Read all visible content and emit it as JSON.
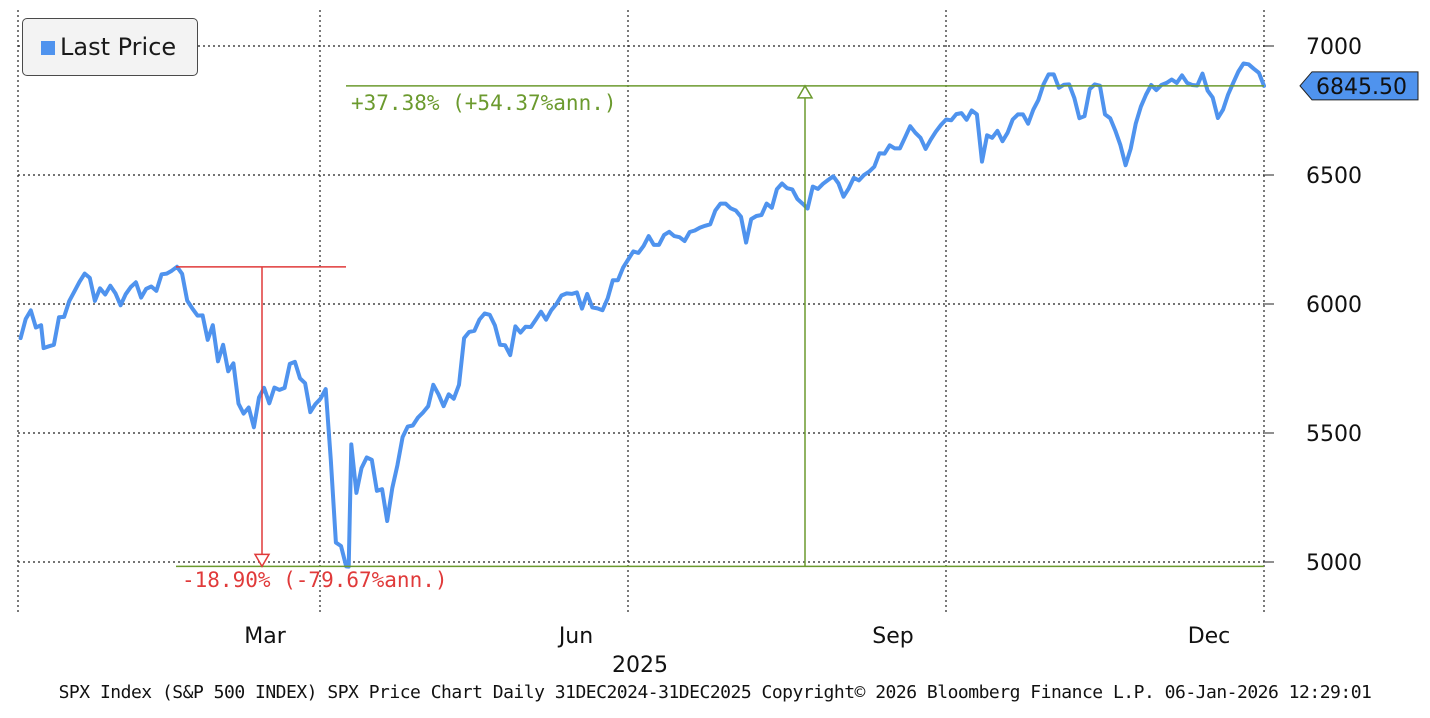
{
  "legend": {
    "label": "Last Price",
    "color": "#4f93ee"
  },
  "last_price_tag": "6845.50",
  "footer": "SPX Index (S&P 500 INDEX) SPX Price Chart Daily 31DEC2024-31DEC2025 Copyright© 2026 Bloomberg Finance L.P. 06-Jan-2026 12:29:01",
  "annotations": {
    "gain_label": "+37.38% (+54.37%ann.)",
    "gain_color": "#6b9a2e",
    "drawdown_label": "-18.90% (-79.67%ann.)",
    "drawdown_color": "#e03a3a"
  },
  "chart_data": {
    "type": "line",
    "title": "",
    "xlabel": "2025",
    "ylabel": "",
    "ylim": [
      4825,
      7100
    ],
    "y_ticks": [
      5000,
      5500,
      6000,
      6500,
      7000
    ],
    "x_ticks": [
      {
        "label": "Mar",
        "day": 60
      },
      {
        "label": "Jun",
        "day": 152
      },
      {
        "label": "Sep",
        "day": 244
      },
      {
        "label": "Dec",
        "day": 335
      }
    ],
    "x_gridlines_days": [
      0,
      89,
      181,
      273
    ],
    "x_range_days": [
      0,
      365
    ],
    "grid": true,
    "legend_position": "top-left",
    "series": [
      {
        "name": "Last Price",
        "color": "#4f93ee",
        "points": [
          [
            1,
            5868
          ],
          [
            3,
            5942
          ],
          [
            5,
            5975
          ],
          [
            7,
            5909
          ],
          [
            9,
            5918
          ],
          [
            10,
            5829
          ],
          [
            12,
            5836
          ],
          [
            14,
            5842
          ],
          [
            16,
            5949
          ],
          [
            18,
            5950
          ],
          [
            20,
            6012
          ],
          [
            22,
            6049
          ],
          [
            24,
            6086
          ],
          [
            26,
            6118
          ],
          [
            28,
            6101
          ],
          [
            30,
            6012
          ],
          [
            32,
            6061
          ],
          [
            34,
            6037
          ],
          [
            36,
            6071
          ],
          [
            38,
            6042
          ],
          [
            40,
            5995
          ],
          [
            42,
            6038
          ],
          [
            44,
            6066
          ],
          [
            46,
            6084
          ],
          [
            48,
            6025
          ],
          [
            50,
            6059
          ],
          [
            52,
            6068
          ],
          [
            54,
            6051
          ],
          [
            56,
            6115
          ],
          [
            58,
            6118
          ],
          [
            60,
            6129
          ],
          [
            62,
            6144
          ],
          [
            64,
            6117
          ],
          [
            66,
            6013
          ],
          [
            68,
            5983
          ],
          [
            70,
            5955
          ],
          [
            72,
            5956
          ],
          [
            74,
            5861
          ],
          [
            76,
            5918
          ],
          [
            78,
            5778
          ],
          [
            80,
            5842
          ],
          [
            82,
            5739
          ],
          [
            84,
            5770
          ],
          [
            86,
            5614
          ],
          [
            88,
            5575
          ],
          [
            90,
            5599
          ],
          [
            92,
            5522
          ],
          [
            94,
            5638
          ],
          [
            96,
            5675
          ],
          [
            98,
            5615
          ],
          [
            100,
            5676
          ],
          [
            102,
            5667
          ],
          [
            104,
            5675
          ],
          [
            106,
            5768
          ],
          [
            108,
            5776
          ],
          [
            110,
            5712
          ],
          [
            112,
            5693
          ],
          [
            114,
            5581
          ],
          [
            116,
            5612
          ],
          [
            118,
            5633
          ],
          [
            120,
            5670
          ],
          [
            122,
            5396
          ],
          [
            124,
            5075
          ],
          [
            126,
            5062
          ],
          [
            128,
            4983
          ],
          [
            129,
            4982
          ],
          [
            130,
            5456
          ],
          [
            132,
            5268
          ],
          [
            134,
            5364
          ],
          [
            136,
            5405
          ],
          [
            138,
            5396
          ],
          [
            140,
            5276
          ],
          [
            142,
            5282
          ],
          [
            144,
            5159
          ],
          [
            146,
            5287
          ],
          [
            148,
            5375
          ],
          [
            150,
            5484
          ],
          [
            152,
            5525
          ],
          [
            154,
            5529
          ],
          [
            156,
            5560
          ],
          [
            158,
            5580
          ],
          [
            160,
            5604
          ],
          [
            162,
            5687
          ],
          [
            164,
            5650
          ],
          [
            166,
            5604
          ],
          [
            168,
            5650
          ],
          [
            170,
            5633
          ],
          [
            172,
            5687
          ],
          [
            174,
            5868
          ],
          [
            176,
            5892
          ],
          [
            178,
            5896
          ],
          [
            180,
            5940
          ],
          [
            182,
            5963
          ],
          [
            184,
            5958
          ],
          [
            186,
            5917
          ],
          [
            188,
            5842
          ],
          [
            190,
            5840
          ],
          [
            192,
            5802
          ],
          [
            194,
            5913
          ],
          [
            196,
            5889
          ],
          [
            198,
            5912
          ],
          [
            200,
            5911
          ],
          [
            202,
            5940
          ],
          [
            204,
            5970
          ],
          [
            206,
            5939
          ],
          [
            208,
            5976
          ],
          [
            210,
            6000
          ],
          [
            212,
            6033
          ],
          [
            214,
            6041
          ],
          [
            216,
            6039
          ],
          [
            218,
            6045
          ],
          [
            220,
            5982
          ],
          [
            222,
            6039
          ],
          [
            224,
            5987
          ],
          [
            226,
            5983
          ],
          [
            228,
            5976
          ],
          [
            230,
            6022
          ],
          [
            232,
            6092
          ],
          [
            234,
            6092
          ],
          [
            236,
            6141
          ],
          [
            238,
            6173
          ],
          [
            240,
            6204
          ],
          [
            242,
            6198
          ],
          [
            244,
            6225
          ],
          [
            246,
            6263
          ],
          [
            248,
            6229
          ],
          [
            250,
            6229
          ],
          [
            252,
            6268
          ],
          [
            254,
            6280
          ],
          [
            256,
            6263
          ],
          [
            258,
            6259
          ],
          [
            260,
            6244
          ],
          [
            262,
            6279
          ],
          [
            264,
            6285
          ],
          [
            266,
            6296
          ],
          [
            268,
            6303
          ],
          [
            270,
            6309
          ],
          [
            272,
            6362
          ],
          [
            274,
            6389
          ],
          [
            276,
            6389
          ],
          [
            278,
            6371
          ],
          [
            280,
            6362
          ],
          [
            282,
            6338
          ],
          [
            284,
            6238
          ],
          [
            286,
            6329
          ],
          [
            288,
            6341
          ],
          [
            290,
            6345
          ],
          [
            292,
            6389
          ],
          [
            294,
            6373
          ],
          [
            296,
            6445
          ],
          [
            298,
            6467
          ],
          [
            300,
            6449
          ],
          [
            302,
            6444
          ],
          [
            304,
            6407
          ],
          [
            306,
            6389
          ],
          [
            308,
            6370
          ],
          [
            310,
            6455
          ],
          [
            312,
            6446
          ],
          [
            314,
            6466
          ],
          [
            316,
            6481
          ],
          [
            318,
            6495
          ],
          [
            320,
            6468
          ],
          [
            322,
            6416
          ],
          [
            324,
            6448
          ],
          [
            326,
            6489
          ],
          [
            328,
            6479
          ],
          [
            330,
            6500
          ],
          [
            332,
            6513
          ],
          [
            334,
            6532
          ],
          [
            336,
            6584
          ],
          [
            338,
            6583
          ],
          [
            340,
            6615
          ],
          [
            342,
            6603
          ],
          [
            344,
            6603
          ],
          [
            346,
            6646
          ],
          [
            348,
            6689
          ],
          [
            350,
            6664
          ],
          [
            352,
            6644
          ],
          [
            354,
            6601
          ],
          [
            356,
            6637
          ],
          [
            358,
            6668
          ],
          [
            360,
            6694
          ]
        ],
        "note_points_end": "continued in series_2"
      }
    ],
    "series_2_continuation": [
      [
        360,
        6694
      ],
      [
        362,
        6715
      ],
      [
        364,
        6712
      ],
      [
        366,
        6736
      ],
      [
        368,
        6740
      ],
      [
        370,
        6714
      ],
      [
        372,
        6750
      ],
      [
        374,
        6735
      ],
      [
        376,
        6552
      ],
      [
        378,
        6654
      ],
      [
        380,
        6644
      ],
      [
        382,
        6671
      ],
      [
        384,
        6631
      ],
      [
        386,
        6664
      ],
      [
        388,
        6715
      ],
      [
        390,
        6735
      ],
      [
        392,
        6735
      ],
      [
        394,
        6699
      ],
      [
        396,
        6753
      ],
      [
        398,
        6791
      ],
      [
        400,
        6851
      ],
      [
        402,
        6890
      ],
      [
        404,
        6890
      ],
      [
        406,
        6838
      ],
      [
        408,
        6850
      ],
      [
        410,
        6851
      ],
      [
        412,
        6799
      ],
      [
        414,
        6720
      ],
      [
        416,
        6728
      ],
      [
        418,
        6833
      ],
      [
        420,
        6851
      ],
      [
        422,
        6846
      ],
      [
        424,
        6735
      ],
      [
        426,
        6720
      ],
      [
        428,
        6672
      ],
      [
        430,
        6616
      ],
      [
        432,
        6538
      ],
      [
        434,
        6602
      ],
      [
        436,
        6700
      ],
      [
        438,
        6765
      ],
      [
        440,
        6812
      ],
      [
        442,
        6849
      ],
      [
        444,
        6829
      ],
      [
        446,
        6849
      ],
      [
        448,
        6857
      ],
      [
        450,
        6870
      ],
      [
        452,
        6857
      ],
      [
        454,
        6886
      ],
      [
        456,
        6857
      ],
      [
        458,
        6849
      ],
      [
        460,
        6847
      ],
      [
        462,
        6893
      ],
      [
        464,
        6827
      ],
      [
        466,
        6800
      ],
      [
        468,
        6721
      ],
      [
        470,
        6753
      ],
      [
        472,
        6812
      ],
      [
        474,
        6857
      ],
      [
        476,
        6901
      ],
      [
        478,
        6932
      ],
      [
        480,
        6929
      ],
      [
        482,
        6912
      ],
      [
        484,
        6896
      ],
      [
        486,
        6845.5
      ]
    ],
    "reference_lines": [
      {
        "y": 6144,
        "from_day": 64,
        "to_day": 134,
        "color": "#e03a3a"
      },
      {
        "y": 4983,
        "from_day": 64,
        "to_day": 486,
        "color": "#6b9a2e"
      },
      {
        "y": 6845.5,
        "from_day": 134,
        "to_day": 486,
        "color": "#6b9a2e"
      }
    ],
    "arrows": [
      {
        "day": 98,
        "from": 6144,
        "to": 4983,
        "color": "#e03a3a",
        "label": "-18.90% (-79.67%ann.)"
      },
      {
        "day": 310,
        "from": 4983,
        "to": 6845.5,
        "color": "#6b9a2e",
        "label": "+37.38% (+54.37%ann.)"
      }
    ]
  }
}
